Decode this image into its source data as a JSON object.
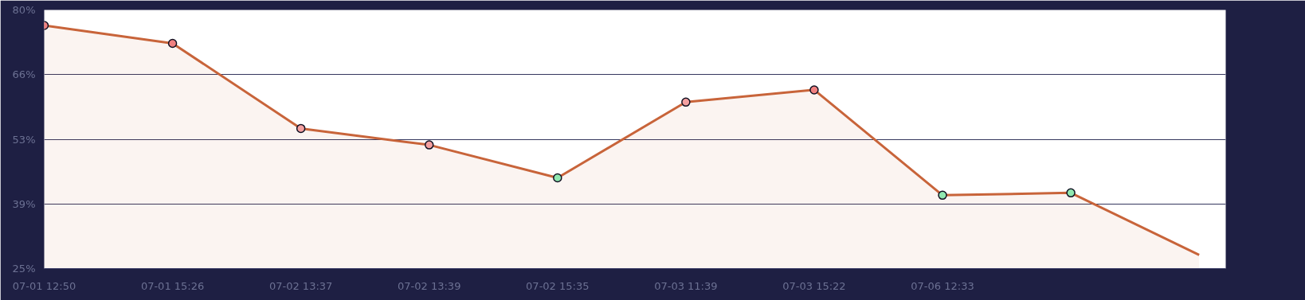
{
  "chart_data": {
    "type": "area",
    "categories": [
      "07-01 12:50",
      "07-01 15:26",
      "07-02 13:37",
      "07-02 13:39",
      "07-02 15:35",
      "07-03 11:39",
      "07-03 15:22",
      "07-06 12:33",
      null,
      null
    ],
    "series": [
      {
        "color": "#c8643a",
        "colors": [
          "#f08080",
          "#f08080",
          "#f4a0a0",
          "#f4a0a0",
          "#90e8b0",
          "#f4a0a0",
          "#f08080",
          "#90e8b0",
          "#90e8b0",
          null
        ],
        "values": [
          76.7,
          72.9,
          54.8,
          51.3,
          44.3,
          60.4,
          63.0,
          40.6,
          41.1,
          27.9
        ]
      }
    ],
    "ylim": [
      25,
      80
    ],
    "yticks": [
      {
        "value": 25,
        "label": "25%"
      },
      {
        "value": 38.75,
        "label": "39%"
      },
      {
        "value": 52.5,
        "label": "53%"
      },
      {
        "value": 66.25,
        "label": "66%"
      },
      {
        "value": 80,
        "label": "80%"
      }
    ],
    "grid": "y",
    "marker": "circle",
    "line_style": "solid"
  }
}
